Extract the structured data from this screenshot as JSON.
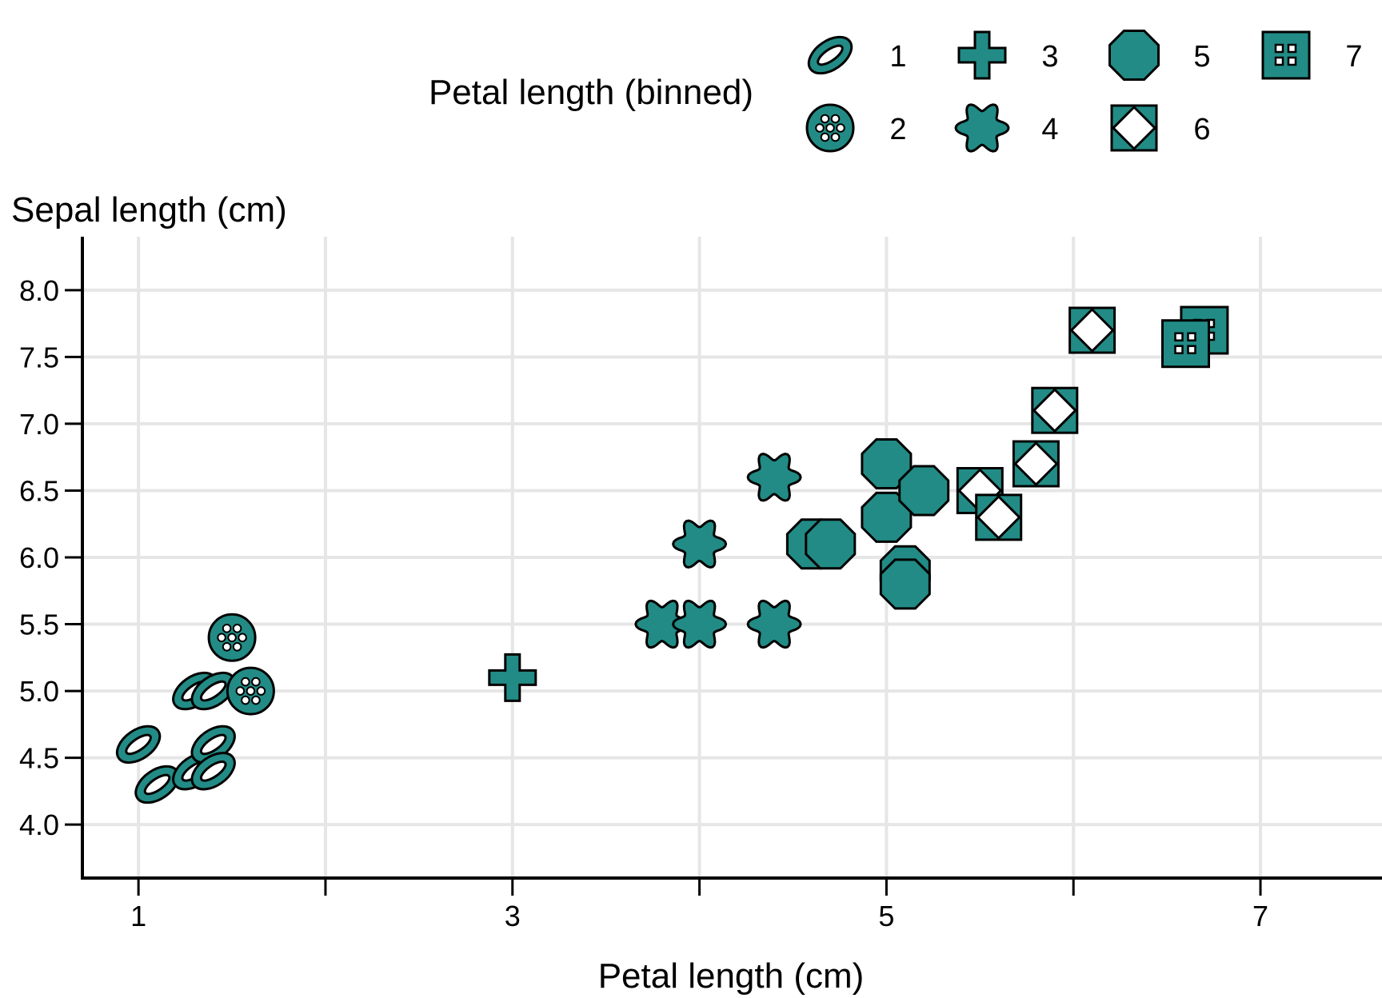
{
  "colors": {
    "marker_fill": "#228b85",
    "marker_stroke": "#000000",
    "grid": "#e6e6e6",
    "axis": "#000000",
    "background": "#ffffff"
  },
  "chart_data": {
    "type": "scatter",
    "title": "",
    "xlabel": "Petal length (cm)",
    "ylabel": "Sepal length (cm)",
    "xlim": [
      0.7,
      7.65
    ],
    "ylim": [
      3.6,
      8.4
    ],
    "xticks": [
      1,
      3,
      5,
      7
    ],
    "xgrid": [
      1,
      2,
      3,
      4,
      5,
      6,
      7
    ],
    "yticks": [
      4.0,
      4.5,
      5.0,
      5.5,
      6.0,
      6.5,
      7.0,
      7.5,
      8.0
    ],
    "ytick_labels": [
      "4.0",
      "4.5",
      "5.0",
      "5.5",
      "6.0",
      "6.5",
      "7.0",
      "7.5",
      "8.0"
    ],
    "grid": true,
    "legend": {
      "title": "Petal length (binned)",
      "placement": "top",
      "entries": [
        {
          "label": "1",
          "shape": "ring-ellipse-icon"
        },
        {
          "label": "2",
          "shape": "dotted-circle-icon"
        },
        {
          "label": "3",
          "shape": "plus-icon"
        },
        {
          "label": "4",
          "shape": "flower-icon"
        },
        {
          "label": "5",
          "shape": "octagon-icon"
        },
        {
          "label": "6",
          "shape": "diamond-in-square-icon"
        },
        {
          "label": "7",
          "shape": "four-windows-square-icon"
        }
      ]
    },
    "series": [
      {
        "bin": "1",
        "points": [
          [
            1.0,
            4.6
          ],
          [
            1.1,
            4.3
          ],
          [
            1.3,
            4.4
          ],
          [
            1.3,
            5.0
          ],
          [
            1.4,
            5.0
          ],
          [
            1.4,
            4.6
          ],
          [
            1.4,
            4.4
          ]
        ]
      },
      {
        "bin": "2",
        "points": [
          [
            1.5,
            5.4
          ],
          [
            1.6,
            5.0
          ]
        ]
      },
      {
        "bin": "3",
        "points": [
          [
            3.0,
            5.1
          ]
        ]
      },
      {
        "bin": "4",
        "points": [
          [
            3.8,
            5.5
          ],
          [
            4.0,
            5.5
          ],
          [
            4.0,
            6.1
          ],
          [
            4.4,
            6.6
          ],
          [
            4.4,
            5.5
          ]
        ]
      },
      {
        "bin": "5",
        "points": [
          [
            4.6,
            6.1
          ],
          [
            4.7,
            6.1
          ],
          [
            5.0,
            6.7
          ],
          [
            5.0,
            6.3
          ],
          [
            5.1,
            5.9
          ],
          [
            5.1,
            5.8
          ],
          [
            5.2,
            6.5
          ]
        ]
      },
      {
        "bin": "6",
        "points": [
          [
            5.5,
            6.5
          ],
          [
            5.6,
            6.3
          ],
          [
            5.8,
            6.7
          ],
          [
            5.9,
            7.1
          ],
          [
            6.1,
            7.7
          ]
        ]
      },
      {
        "bin": "7",
        "points": [
          [
            6.7,
            7.7
          ],
          [
            6.6,
            7.6
          ]
        ]
      }
    ]
  }
}
